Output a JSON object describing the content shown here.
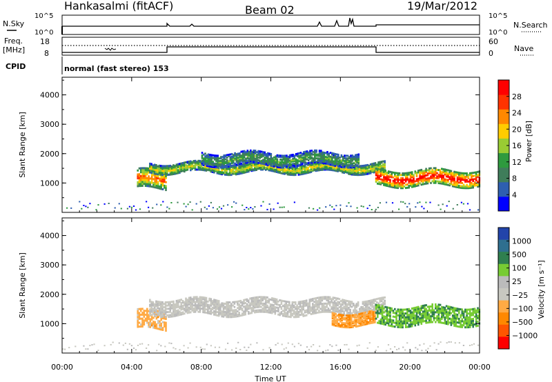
{
  "header": {
    "station": "Hankasalmi (fitACF)",
    "beam": "Beam 02",
    "date": "19/Mar/2012"
  },
  "panels": {
    "nsky": {
      "left_label": "N.Sky",
      "right_label": "N.Search",
      "left_ticks": [
        "10^5",
        "10^0"
      ],
      "right_ticks": [
        "10^5",
        "10^0"
      ]
    },
    "freq": {
      "left_label_1": "Freq.",
      "left_label_2": "[MHz]",
      "right_label": "Nave",
      "left_ticks": [
        "18",
        "8"
      ],
      "right_ticks": [
        "60",
        "0"
      ]
    },
    "cpid": {
      "label": "CPID",
      "mode": "normal (fast stereo) 153"
    }
  },
  "colors": {
    "power_scale": [
      "#0000ff",
      "#2e5fb0",
      "#3f7d5a",
      "#2e9a3e",
      "#99cc33",
      "#ffcc00",
      "#ff8800",
      "#ff3300",
      "#ff0000"
    ],
    "velocity_scale": [
      "#ff0000",
      "#ff5500",
      "#ff8800",
      "#ffaa44",
      "#c8c8c0",
      "#bbbbbb",
      "#77cc33",
      "#2f7f4f",
      "#2f6f8f",
      "#2244aa"
    ],
    "ground_scatter": "#c8c8c0"
  },
  "chart_data": [
    {
      "type": "heatmap",
      "name": "power",
      "ylabel": "Slant Range [km]",
      "xlabel": "",
      "yticks": [
        "1000",
        "2000",
        "3000",
        "4000"
      ],
      "ylim": [
        0,
        4600
      ],
      "xlim_hours": [
        0,
        24
      ],
      "colorbar": {
        "label": "Power [dB]",
        "ticks": [
          "4",
          "8",
          "12",
          "16",
          "20",
          "24",
          "28"
        ],
        "range": [
          0,
          32
        ]
      },
      "echo_bands": [
        {
          "t_start": 4.3,
          "t_end": 6.0,
          "r_center": 1150,
          "r_width": 600,
          "power": 24
        },
        {
          "t_start": 5.0,
          "t_end": 18.5,
          "r_center": 1550,
          "r_width": 300,
          "power": 18
        },
        {
          "t_start": 8.0,
          "t_end": 17.0,
          "r_center": 1850,
          "r_width": 400,
          "power": 12
        },
        {
          "t_start": 18.0,
          "t_end": 24.0,
          "r_center": 1200,
          "r_width": 500,
          "power": 30
        }
      ]
    },
    {
      "type": "heatmap",
      "name": "velocity",
      "ylabel": "Slant Range [km]",
      "xlabel": "Time UT",
      "yticks": [
        "1000",
        "2000",
        "3000",
        "4000"
      ],
      "xticks": [
        "00:00",
        "04:00",
        "08:00",
        "12:00",
        "16:00",
        "20:00",
        "00:00"
      ],
      "ylim": [
        0,
        4600
      ],
      "xlim_hours": [
        0,
        24
      ],
      "colorbar": {
        "label": "Velocity [m s⁻¹]",
        "ticks": [
          "1000",
          "500",
          "100",
          "25",
          "−25",
          "−100",
          "−500",
          "−1000"
        ]
      },
      "echo_bands": [
        {
          "t_start": 4.3,
          "t_end": 6.0,
          "r_center": 1150,
          "r_width": 600,
          "velocity": -300
        },
        {
          "t_start": 5.0,
          "t_end": 18.5,
          "r_center": 1600,
          "r_width": 500,
          "velocity": 0
        },
        {
          "t_start": 15.5,
          "t_end": 18.0,
          "r_center": 1200,
          "r_width": 400,
          "velocity": -400
        },
        {
          "t_start": 18.0,
          "t_end": 24.0,
          "r_center": 1300,
          "r_width": 600,
          "velocity": 400
        }
      ]
    }
  ]
}
